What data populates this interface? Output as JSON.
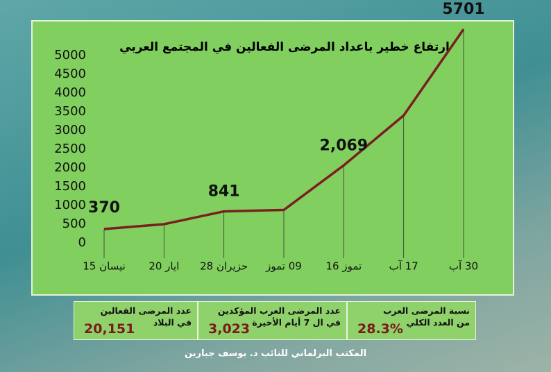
{
  "chart_data": {
    "type": "line",
    "title": "ارتفاع خطير باعداد المرضى الفعالين في المجتمع العربي",
    "categories": [
      "نيسان 15",
      "ايار 20",
      "حزيران 28",
      "09 تموز",
      "تموز 16",
      "17 آب",
      "30 آب"
    ],
    "series": [
      {
        "color": "#7a1f1f",
        "values": [
          370,
          500,
          841,
          880,
          2069,
          3400,
          5701
        ],
        "value_labels": [
          "370",
          null,
          "841",
          null,
          "2,069",
          null,
          "5701"
        ]
      }
    ],
    "ylim": [
      0,
      6000
    ],
    "yticks": [
      0,
      500,
      1000,
      1500,
      2000,
      2500,
      3000,
      3500,
      4000,
      4500,
      5000
    ]
  },
  "stats": [
    {
      "label": [
        "نسبة المرضى العرب",
        "من العدد الكلي"
      ],
      "value": "28.3%"
    },
    {
      "label": [
        "عدد المرضى العرب المؤكدين",
        "في ال 7 أيام الأخيرة"
      ],
      "value": "3,023"
    },
    {
      "label": [
        "عدد المرضى الفعالين",
        "في البلاد"
      ],
      "value": "20,151"
    }
  ],
  "footer": "المكتب البرلماني للنائب د. يوسف جبارين"
}
